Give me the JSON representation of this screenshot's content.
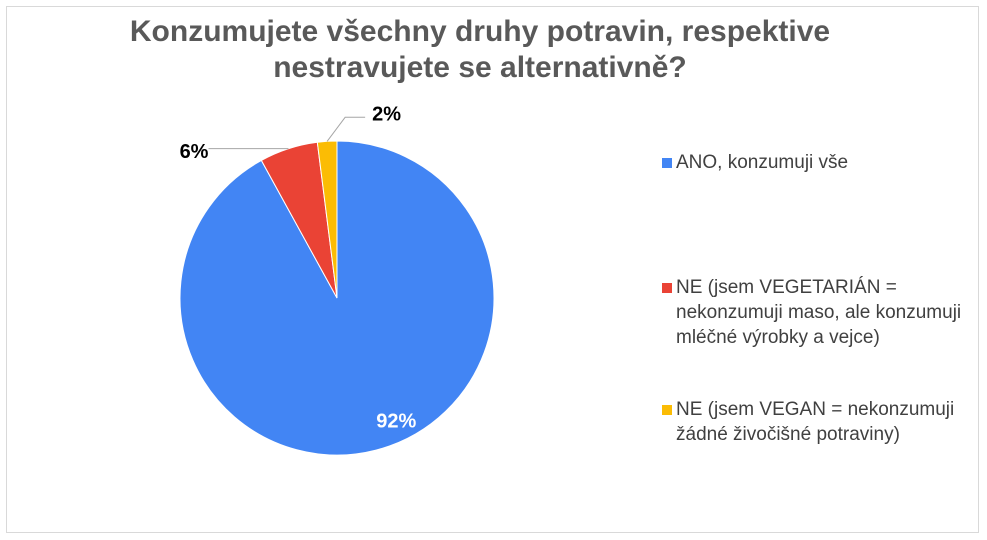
{
  "chart_data": {
    "type": "pie",
    "title": "Konzumujete všechny druhy potravin, respektive nestravujete se alternativně?",
    "categories": [
      "ANO, konzumuji vše",
      "NE (jsem VEGETARIÁN = nekonzumuji maso, ale konzumuji mléčné výrobky a vejce)",
      "NE (jsem VEGAN = nekonzumuji žádné živočišné potraviny)"
    ],
    "values": [
      92,
      6,
      2
    ],
    "value_labels": [
      "92%",
      "6%",
      "2%"
    ],
    "colors": [
      "#4285f4",
      "#ea4335",
      "#fbbc04"
    ],
    "legend": "right"
  }
}
